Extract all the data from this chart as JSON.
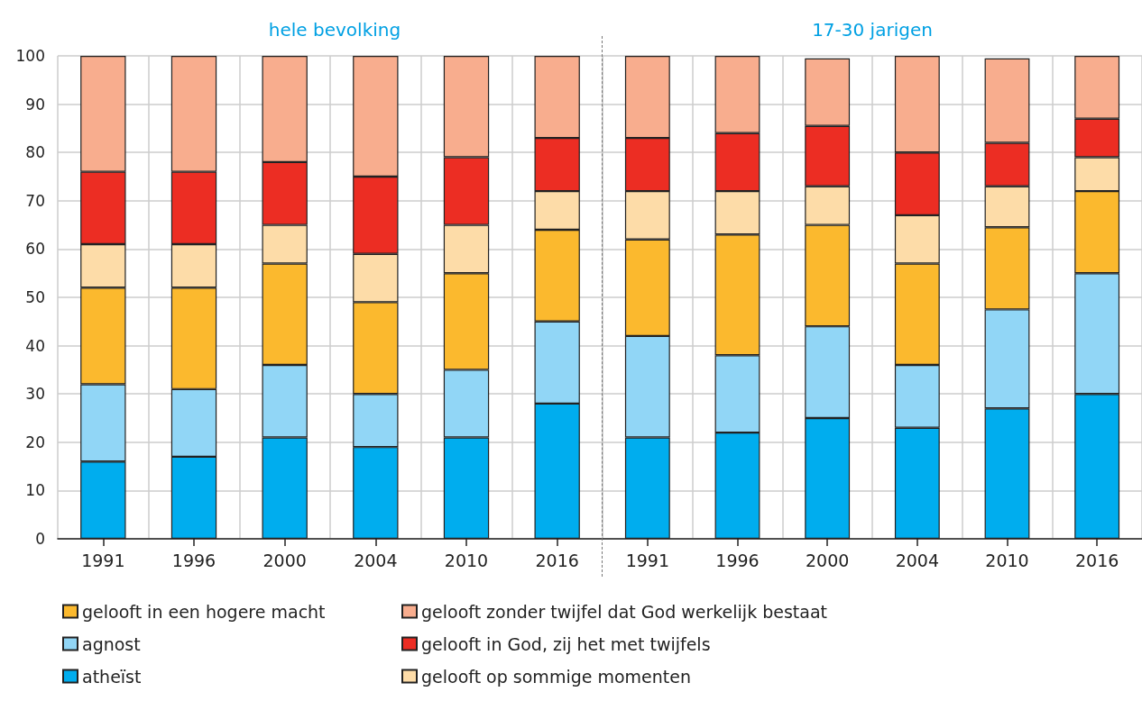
{
  "chart_data": [
    {
      "type": "bar",
      "title": "hele bevolking",
      "stacked": true,
      "categories": [
        "1991",
        "1996",
        "2000",
        "2004",
        "2010",
        "2016"
      ],
      "ylim": [
        0,
        100
      ],
      "yticks": [
        0,
        10,
        20,
        30,
        40,
        50,
        60,
        70,
        80,
        90,
        100
      ],
      "grid": true,
      "legend": "bottom",
      "series": [
        {
          "name": "atheïst",
          "color": "#00adee",
          "values": [
            16,
            17,
            21,
            19,
            21,
            28
          ]
        },
        {
          "name": "agnost",
          "color": "#91d6f6",
          "values": [
            16,
            14,
            15,
            11,
            14,
            17
          ]
        },
        {
          "name": "gelooft in een hogere macht",
          "color": "#fbb92e",
          "values": [
            20,
            21,
            21,
            19,
            20,
            19
          ]
        },
        {
          "name": "gelooft op sommige momenten",
          "color": "#fddca8",
          "values": [
            9,
            9,
            8,
            10,
            10,
            8
          ]
        },
        {
          "name": "gelooft in God, zij het met twijfels",
          "color": "#ec2d23",
          "values": [
            15,
            15,
            13,
            16,
            14,
            11
          ]
        },
        {
          "name": "gelooft zonder twijfel dat God werkelijk bestaat",
          "color": "#f8ad8e",
          "values": [
            24,
            24,
            22,
            25,
            21,
            17
          ]
        }
      ]
    },
    {
      "type": "bar",
      "title": "17-30 jarigen",
      "stacked": true,
      "categories": [
        "1991",
        "1996",
        "2000",
        "2004",
        "2010",
        "2016"
      ],
      "ylim": [
        0,
        100
      ],
      "yticks": [
        0,
        10,
        20,
        30,
        40,
        50,
        60,
        70,
        80,
        90,
        100
      ],
      "grid": true,
      "tick_labels": "x",
      "series": [
        {
          "color": "#00adee",
          "values": [
            21,
            22,
            25,
            23,
            27,
            30
          ]
        },
        {
          "color": "#91d6f6",
          "values": [
            21,
            16,
            19,
            13,
            20.5,
            25
          ]
        },
        {
          "color": "#fbb92e",
          "values": [
            20,
            25,
            21,
            21,
            17,
            17
          ]
        },
        {
          "color": "#fddca8",
          "values": [
            10,
            9,
            8,
            10,
            8.5,
            7
          ]
        },
        {
          "color": "#ec2d23",
          "values": [
            11,
            12,
            12.5,
            13,
            9,
            8
          ]
        },
        {
          "color": "#f8ad8e",
          "values": [
            17,
            16,
            14,
            20,
            17.5,
            13
          ]
        }
      ]
    }
  ]
}
